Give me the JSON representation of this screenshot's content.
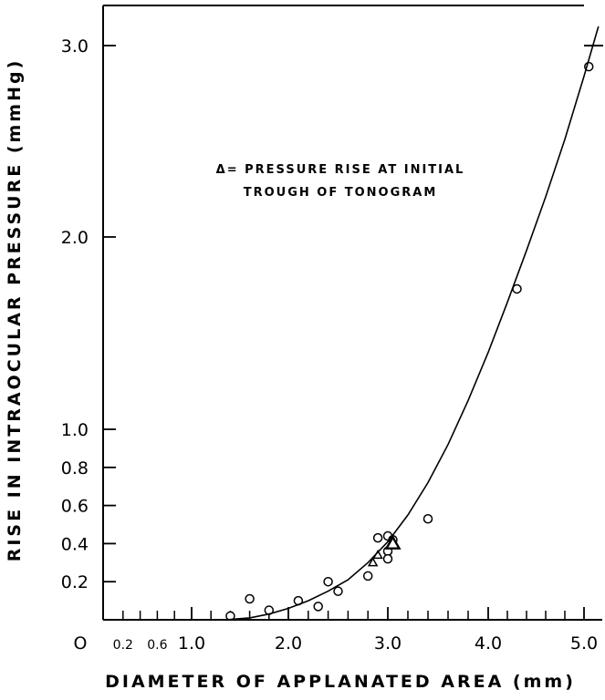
{
  "chart_data": {
    "type": "scatter",
    "title": "",
    "xlabel": "DIAMETER   OF   APPLANATED   AREA   (mm)",
    "ylabel": "RISE  IN  INTRAOCULAR  PRESSURE   (mmHg)",
    "xlim": [
      0,
      5.2
    ],
    "ylim": [
      0,
      3.2
    ],
    "x_ticks": [
      {
        "value": 0,
        "label": "O",
        "small": false
      },
      {
        "value": 0.2,
        "label": "0.2",
        "small": true
      },
      {
        "value": 0.6,
        "label": "0.6",
        "small": true
      },
      {
        "value": 1.0,
        "label": "1.0",
        "small": false
      },
      {
        "value": 2.0,
        "label": "2.0",
        "small": false
      },
      {
        "value": 3.0,
        "label": "3.0",
        "small": false
      },
      {
        "value": 4.0,
        "label": "4.0",
        "small": false
      },
      {
        "value": 5.0,
        "label": "5.0",
        "small": false
      }
    ],
    "x_minor_ticks": [
      0.2,
      0.4,
      0.6,
      0.8,
      1.2,
      1.4,
      1.6,
      1.8,
      2.2,
      2.4,
      2.6,
      2.8,
      3.2,
      3.4,
      3.6,
      3.8,
      4.2,
      4.4,
      4.6,
      4.8
    ],
    "y_ticks": [
      {
        "value": 0.2,
        "label": "0.2"
      },
      {
        "value": 0.4,
        "label": "0.4"
      },
      {
        "value": 0.6,
        "label": "0.6"
      },
      {
        "value": 0.8,
        "label": "0.8"
      },
      {
        "value": 1.0,
        "label": "1.0"
      },
      {
        "value": 2.0,
        "label": "2.0"
      },
      {
        "value": 3.0,
        "label": "3.0"
      }
    ],
    "grid": false,
    "annotation": {
      "line1": "Δ= PRESSURE RISE AT INITIAL",
      "line2": "TROUGH OF TONOGRAM"
    },
    "series": [
      {
        "marker": "circle",
        "points": [
          [
            1.4,
            0.02
          ],
          [
            1.6,
            0.11
          ],
          [
            1.8,
            0.05
          ],
          [
            2.1,
            0.1
          ],
          [
            2.3,
            0.07
          ],
          [
            2.4,
            0.2
          ],
          [
            2.5,
            0.15
          ],
          [
            2.8,
            0.23
          ],
          [
            2.9,
            0.43
          ],
          [
            3.0,
            0.44
          ],
          [
            3.0,
            0.36
          ],
          [
            3.0,
            0.32
          ],
          [
            3.05,
            0.42
          ],
          [
            3.4,
            0.53
          ],
          [
            4.3,
            1.73
          ],
          [
            5.05,
            2.89
          ]
        ]
      },
      {
        "marker": "triangle",
        "points": [
          [
            2.85,
            0.3
          ],
          [
            2.9,
            0.34
          ],
          [
            3.05,
            0.4
          ]
        ]
      },
      {
        "marker": "line",
        "points": [
          [
            1.35,
            0.0
          ],
          [
            1.6,
            0.01
          ],
          [
            1.8,
            0.03
          ],
          [
            2.0,
            0.06
          ],
          [
            2.2,
            0.1
          ],
          [
            2.4,
            0.15
          ],
          [
            2.6,
            0.21
          ],
          [
            2.8,
            0.3
          ],
          [
            3.0,
            0.41
          ],
          [
            3.2,
            0.55
          ],
          [
            3.4,
            0.72
          ],
          [
            3.6,
            0.92
          ],
          [
            3.8,
            1.15
          ],
          [
            4.0,
            1.4
          ],
          [
            4.2,
            1.66
          ],
          [
            4.4,
            1.93
          ],
          [
            4.6,
            2.21
          ],
          [
            4.8,
            2.51
          ],
          [
            5.0,
            2.84
          ],
          [
            5.15,
            3.1
          ]
        ]
      }
    ]
  }
}
